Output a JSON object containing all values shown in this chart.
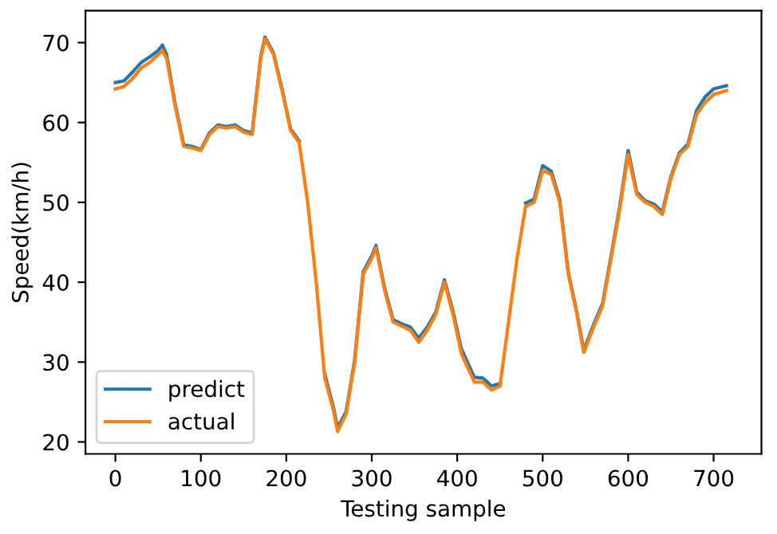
{
  "chart_data": {
    "type": "line",
    "xlabel": "Testing sample",
    "ylabel": "Speed(km/h)",
    "x": [
      0,
      10,
      20,
      30,
      40,
      50,
      55,
      60,
      70,
      80,
      90,
      100,
      110,
      120,
      130,
      140,
      150,
      160,
      170,
      175,
      185,
      195,
      205,
      215,
      225,
      235,
      245,
      255,
      260,
      270,
      280,
      290,
      300,
      305,
      315,
      325,
      335,
      345,
      355,
      365,
      375,
      385,
      395,
      405,
      420,
      430,
      440,
      450,
      460,
      470,
      480,
      490,
      500,
      510,
      520,
      530,
      540,
      548,
      560,
      570,
      580,
      590,
      600,
      610,
      620,
      630,
      640,
      650,
      660,
      670,
      680,
      690,
      700,
      715
    ],
    "series": [
      {
        "name": "predict",
        "color": "#1f77b4",
        "values": [
          65.0,
          65.2,
          66.3,
          67.5,
          68.2,
          69.0,
          69.7,
          68.5,
          62.3,
          57.2,
          57.0,
          56.6,
          58.7,
          59.7,
          59.5,
          59.7,
          59.0,
          58.7,
          68.2,
          70.7,
          68.7,
          64.2,
          59.2,
          57.7,
          null,
          null,
          28.5,
          24.4,
          21.8,
          23.8,
          30.3,
          41.3,
          43.3,
          44.6,
          39.3,
          35.3,
          34.8,
          34.4,
          33.0,
          34.4,
          36.3,
          40.3,
          36.4,
          31.6,
          28.1,
          28.0,
          27.0,
          27.3,
          null,
          null,
          49.9,
          50.4,
          54.6,
          53.9,
          50.3,
          41.2,
          36.2,
          31.5,
          34.8,
          37.3,
          43.3,
          49.4,
          56.5,
          51.3,
          50.2,
          49.8,
          48.8,
          53.2,
          56.2,
          57.3,
          61.5,
          63.2,
          64.2,
          64.6
        ]
      },
      {
        "name": "actual",
        "color": "#ff7f0e",
        "values": [
          64.2,
          64.5,
          65.5,
          66.8,
          67.5,
          68.5,
          69.0,
          68.0,
          62.0,
          57.0,
          56.8,
          56.5,
          58.5,
          59.5,
          59.3,
          59.5,
          58.8,
          58.5,
          68.0,
          70.5,
          68.5,
          64.0,
          59.0,
          57.5,
          50.0,
          40.0,
          28.0,
          24.0,
          21.3,
          23.5,
          30.0,
          41.0,
          43.0,
          44.3,
          39.0,
          35.0,
          34.5,
          34.0,
          32.5,
          34.0,
          36.0,
          40.0,
          36.0,
          31.0,
          27.5,
          27.5,
          26.5,
          27.0,
          35.0,
          43.0,
          49.5,
          50.0,
          54.0,
          53.5,
          50.0,
          41.0,
          36.0,
          31.2,
          34.5,
          37.0,
          43.0,
          49.0,
          56.0,
          51.0,
          50.0,
          49.5,
          48.5,
          53.0,
          56.0,
          57.0,
          61.0,
          62.5,
          63.5,
          64.0
        ]
      }
    ],
    "xlim": [
      -35,
      756
    ],
    "ylim": [
      18.5,
      74
    ],
    "xticks": [
      0,
      100,
      200,
      300,
      400,
      500,
      600,
      700
    ],
    "yticks": [
      20,
      30,
      40,
      50,
      60,
      70
    ],
    "legend": "lower left",
    "grid": false
  }
}
